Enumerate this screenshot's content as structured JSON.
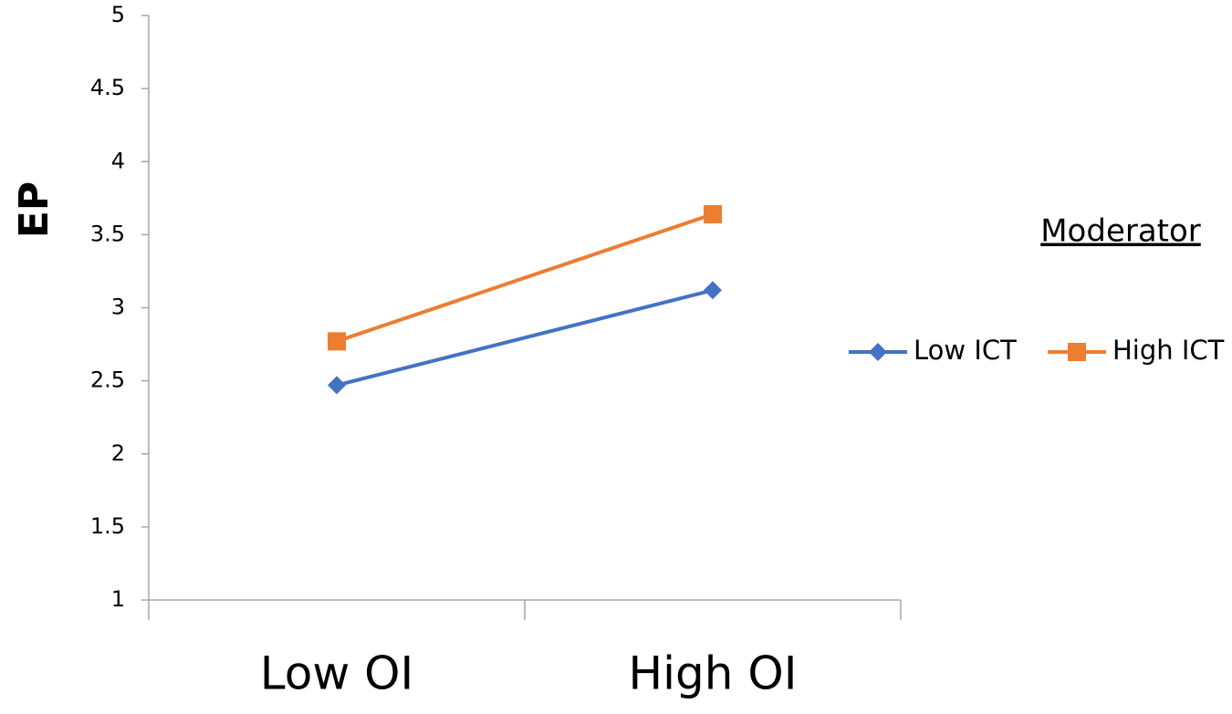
{
  "chart_data": {
    "type": "line",
    "y_label": "EP",
    "legend_title": "Moderator",
    "categories": [
      "Low OI",
      "High OI"
    ],
    "series": [
      {
        "name": "Low ICT",
        "color": "#4472c4",
        "marker": "diamond",
        "values": [
          2.47,
          3.12
        ]
      },
      {
        "name": "High ICT",
        "color": "#ed7d31",
        "marker": "square",
        "values": [
          2.77,
          3.64
        ]
      }
    ],
    "ylim": [
      1,
      5
    ],
    "yticks": [
      1,
      1.5,
      2,
      2.5,
      3,
      3.5,
      4,
      4.5,
      5
    ],
    "grid": false
  }
}
